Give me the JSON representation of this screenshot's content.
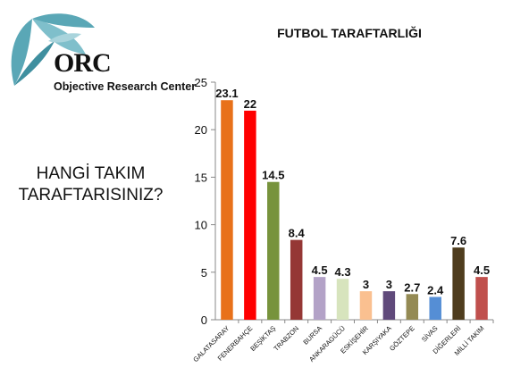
{
  "logo": {
    "brand": "ORC",
    "org_name": "Objective Research Center",
    "colors": {
      "leaf": "#5aa7b6",
      "text": "#111111"
    }
  },
  "question": {
    "line1": "HANGİ TAKIM",
    "line2": "TARAFTARISINIZ?"
  },
  "chart_data": {
    "type": "bar",
    "title": "FUTBOL TARAFTARLIĞI",
    "xlabel": "",
    "ylabel": "",
    "ylim": [
      0,
      25
    ],
    "yticks": [
      0,
      5,
      10,
      15,
      20,
      25
    ],
    "grid": false,
    "legend": "none",
    "categories": [
      "GALATASARAY",
      "FENERBAHÇE",
      "BEŞİKTAŞ",
      "TRABZON",
      "BURSA",
      "ANKARAGÜCÜ",
      "ESKİŞEHİR",
      "KARŞIYAKA",
      "GÖZTEPE",
      "SİVAS",
      "DİĞERLERİ",
      "MİLLİ TAKIM"
    ],
    "values": [
      23.1,
      22,
      14.5,
      8.4,
      4.5,
      4.3,
      3,
      3,
      2.7,
      2.4,
      7.6,
      4.5
    ],
    "value_labels": [
      "23.1",
      "22",
      "14.5",
      "8.4",
      "4.5",
      "4.3",
      "3",
      "3",
      "2.7",
      "2.4",
      "7.6",
      "4.5"
    ],
    "bar_colors": [
      "#e8711a",
      "#ff0000",
      "#77933c",
      "#953735",
      "#b3a2c7",
      "#d7e4bd",
      "#fac090",
      "#604a7b",
      "#948a54",
      "#558ed5",
      "#4f3d1e",
      "#c0504d"
    ]
  }
}
